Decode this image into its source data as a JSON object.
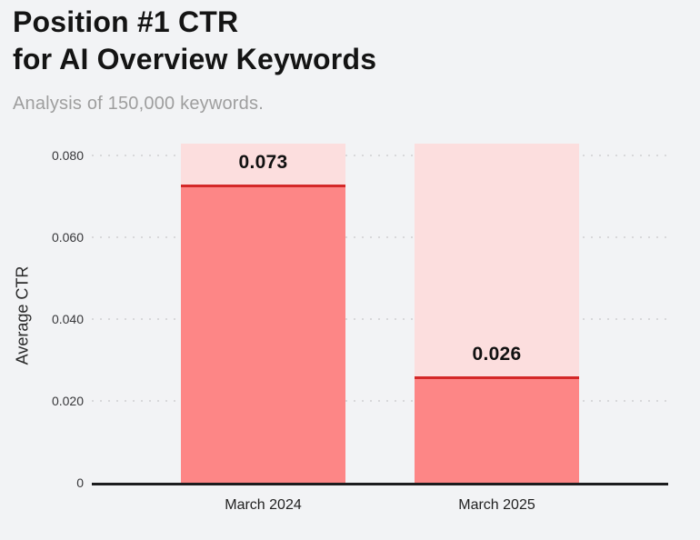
{
  "header": {
    "title_line1": "Position #1 CTR",
    "title_line2": "for AI Overview Keywords",
    "subtitle": "Analysis of 150,000 keywords."
  },
  "chart_data": {
    "type": "bar",
    "title": "Position #1 CTR for AI Overview Keywords",
    "subtitle": "Analysis of 150,000 keywords.",
    "categories": [
      "March 2024",
      "March 2025"
    ],
    "values": [
      0.073,
      0.026
    ],
    "value_labels": [
      "0.073",
      "0.026"
    ],
    "xlabel": "",
    "ylabel": "Average CTR",
    "ylim": [
      0,
      0.083
    ],
    "yticks": [
      0,
      0.02,
      0.04,
      0.06,
      0.08
    ],
    "ytick_labels": [
      "0",
      "0.020",
      "0.040",
      "0.060",
      "0.080"
    ],
    "grid": "horizontal-dotted",
    "legend": "none",
    "colors": {
      "background": "#f2f3f5",
      "bar_fill": "#fd8686",
      "bar_track": "#fcdede",
      "bar_top_line": "#d42828",
      "axis_line": "#1c1c1e",
      "gridline": "#d8d8da",
      "title_text": "#141414",
      "subtitle_text": "#9e9e9e",
      "tick_text": "#37373a",
      "value_label_text": "#111111"
    }
  }
}
